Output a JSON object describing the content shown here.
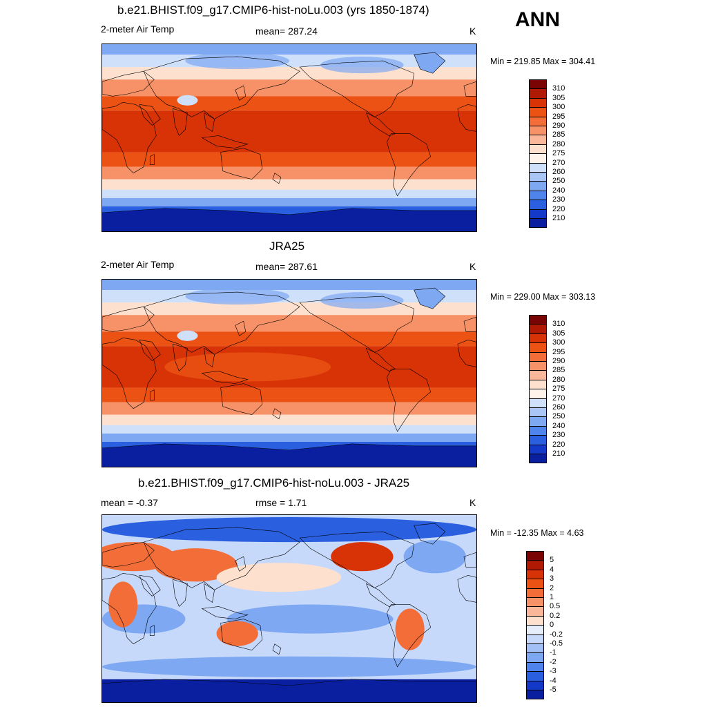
{
  "season": "ANN",
  "panels": [
    {
      "title": "b.e21.BHIST.f09_g17.CMIP6-hist-noLu.003 (yrs 1850-1874)",
      "left_label": "2-meter Air Temp",
      "center_label": "mean= 287.24",
      "right_label": "K",
      "minmax": "Min = 219.85 Max = 304.41",
      "kind": "abs"
    },
    {
      "title": "JRA25",
      "left_label": "2-meter Air Temp",
      "center_label": "mean= 287.61",
      "right_label": "K",
      "minmax": "Min = 229.00 Max = 303.13",
      "kind": "abs"
    },
    {
      "title": "b.e21.BHIST.f09_g17.CMIP6-hist-noLu.003 - JRA25",
      "left_label": "mean =  -0.37",
      "center_label": "rmse =   1.71",
      "right_label": "K",
      "minmax": "Min = -12.35 Max =   4.63",
      "kind": "diff"
    }
  ],
  "colorbars": {
    "abs": {
      "labels": [
        "310",
        "305",
        "300",
        "295",
        "290",
        "285",
        "280",
        "275",
        "270",
        "260",
        "250",
        "240",
        "230",
        "220",
        "210"
      ],
      "colors": [
        "#7a0403",
        "#b01a04",
        "#d83207",
        "#eb5213",
        "#f26d38",
        "#f79268",
        "#fbb79a",
        "#fde0cd",
        "#fff3ea",
        "#cfe0fb",
        "#a9c6f7",
        "#7ea8f2",
        "#4f84ec",
        "#2a5fe0",
        "#1438c8",
        "#0a1fa0"
      ]
    },
    "diff": {
      "labels": [
        "5",
        "4",
        "3",
        "2",
        "1",
        "0.5",
        "0.2",
        "0",
        "-0.2",
        "-0.5",
        "-1",
        "-2",
        "-3",
        "-4",
        "-5"
      ],
      "colors": [
        "#7a0403",
        "#b01a04",
        "#d83207",
        "#eb5213",
        "#f26d38",
        "#f79268",
        "#fbb79a",
        "#fde0cd",
        "#e6eefc",
        "#c7d9fa",
        "#a3c0f6",
        "#7ea8f2",
        "#4f84ec",
        "#2a5fe0",
        "#1438c8",
        "#0a1fa0"
      ]
    }
  },
  "map_colors": {
    "abs": {
      "polar_deep": "#0a1fa0",
      "polar": "#2a5fe0",
      "cold": "#7ea8f2",
      "cool": "#cfe0fb",
      "mild": "#fde0cd",
      "warm": "#f79268",
      "warmer": "#eb5213",
      "hot": "#d83207"
    },
    "diff": {
      "deep_blue": "#0a1fa0",
      "blue": "#2a5fe0",
      "mid_blue": "#7ea8f2",
      "light_blue": "#c7d9fa",
      "neutral": "#fde0cd",
      "orange": "#f26d38",
      "red": "#d83207"
    }
  }
}
